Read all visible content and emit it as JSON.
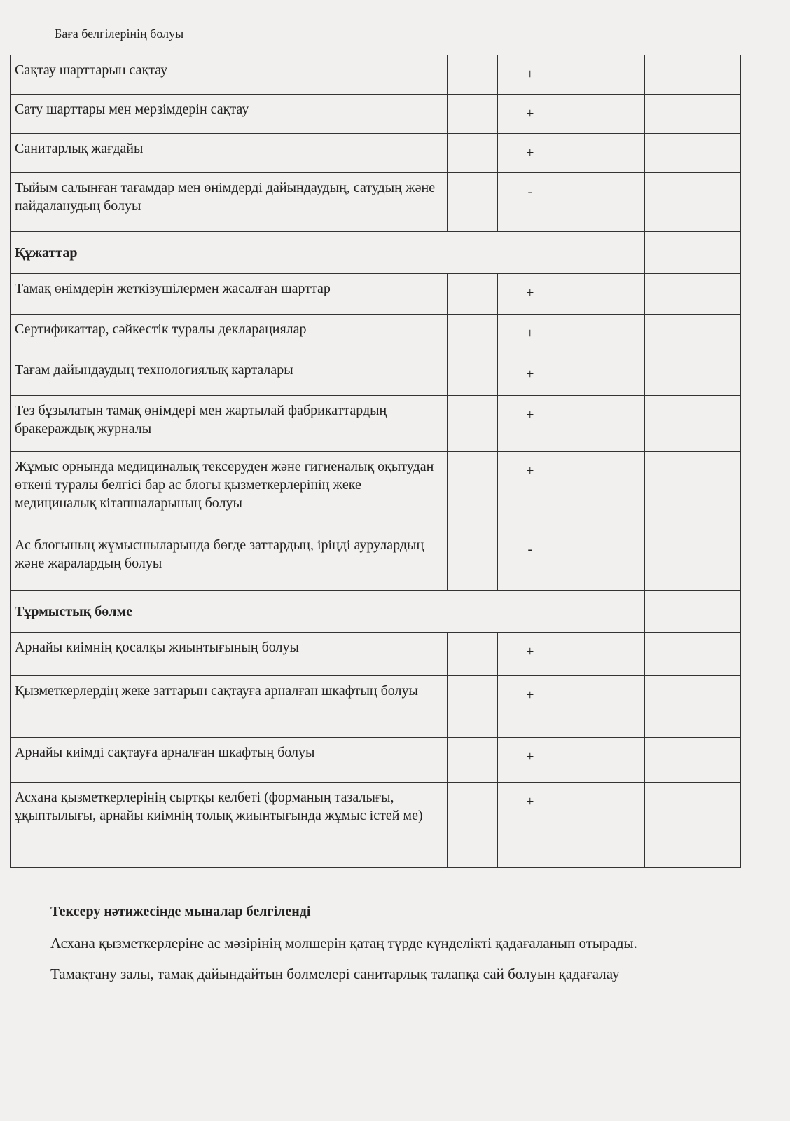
{
  "header": {
    "text": "Баға белгілерінің болуы"
  },
  "table": {
    "rows": [
      {
        "label": "Сақтау шарттарын сақтау",
        "mark": "+"
      },
      {
        "label": "Сату шарттары мен мерзімдерін сақтау",
        "mark": "+"
      },
      {
        "label": "Санитарлық жағдайы",
        "mark": "+"
      },
      {
        "label": "Тыйым салынған тағамдар мен өнімдерді дайындаудың, сатудың және пайдаланудың болуы",
        "mark": "-"
      },
      {
        "section": "Құжаттар"
      },
      {
        "label": "Тамақ өнімдерін жеткізушілермен жасалған шарттар",
        "mark": "+"
      },
      {
        "label": "Сертификаттар, сәйкестік туралы декларациялар",
        "mark": "+"
      },
      {
        "label": "Тағам дайындаудың технологиялық карталары",
        "mark": "+"
      },
      {
        "label": "Тез бұзылатын тамақ өнімдері мен жартылай фабрикаттардың бракераждық журналы",
        "mark": "+"
      },
      {
        "label": "Жұмыс орнында медициналық тексеруден және гигиеналық оқытудан өткені туралы белгісі бар ас блогы қызметкерлерінің жеке медициналық кітапшаларының болуы",
        "mark": "+"
      },
      {
        "label": "Ас блогының жұмысшыларында бөгде заттардың, іріңді аурулардың және жаралардың болуы",
        "mark": "-"
      },
      {
        "section": "Тұрмыстық бөлме"
      },
      {
        "label": "Арнайы киімнің қосалқы жиынтығының болуы",
        "mark": "+"
      },
      {
        "label": "Қызметкерлердің жеке заттарын сақтауға арналған шкафтың болуы",
        "mark": "+"
      },
      {
        "label": "Арнайы киімді сақтауға арналған шкафтың болуы",
        "mark": "+"
      },
      {
        "label": "Асхана қызметкерлерінің сыртқы келбеті (форманың тазалығы, ұқыптылығы, арнайы киімнің толық жиынтығында жұмыс істей ме)",
        "mark": "+"
      }
    ]
  },
  "results": {
    "heading": "Тексеру нәтижесінде мыналар белгіленді",
    "paragraphs": [
      "Асхана қызметкерлеріне ас мәзірінің мөлшерін қатаң түрде күнделікті қадағаланып отырады.",
      "Тамақтану залы, тамақ дайындайтын бөлмелері санитарлық талапқа сай болуын қадағалау"
    ]
  }
}
